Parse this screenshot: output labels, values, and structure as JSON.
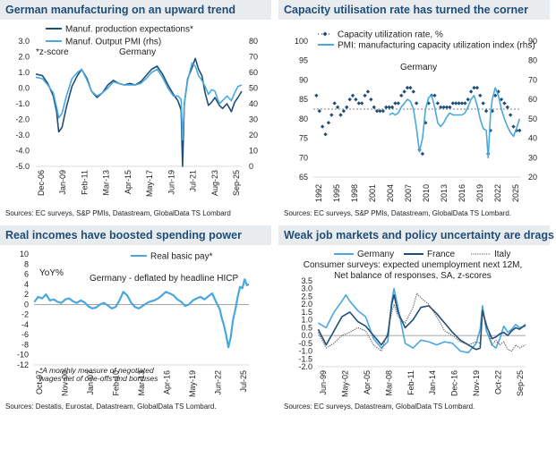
{
  "chart_data": [
    {
      "type": "line",
      "title": "German manufacturing on an upward trend",
      "source": "Sources: EC surveys, S&P PMIs, Datastream, GlobalData TS Lombard",
      "annotations": [
        "*z-score",
        "Germany"
      ],
      "x_tick_labels": [
        "Dec-06",
        "Jan-09",
        "Feb-11",
        "Mar-13",
        "Apr-15",
        "May-17",
        "Jun-19",
        "Jul-21",
        "Aug-23",
        "Sep-25"
      ],
      "y_left_ticks": [
        "3.0",
        "2.0",
        "1.0",
        "0.0",
        "-1.0",
        "-2.0",
        "-3.0",
        "-4.0",
        "-5.0"
      ],
      "y_right_ticks": [
        "80",
        "70",
        "60",
        "50",
        "40",
        "30",
        "20",
        "10",
        "0"
      ],
      "ylim_left": [
        -5,
        3
      ],
      "ylim_right": [
        0,
        80
      ],
      "xlim": [
        2006.9,
        2025.75
      ],
      "grid": false,
      "legend_placement": "top",
      "colors": {
        "s0": "#1f4e79",
        "s1": "#4aa8dc"
      },
      "series": [
        {
          "name": "Manuf. production expectations*",
          "axis": "left",
          "x": [
            2006.9,
            2007.5,
            2008.0,
            2008.5,
            2008.8,
            2009.0,
            2009.3,
            2009.7,
            2010.2,
            2010.7,
            2011.1,
            2011.6,
            2012.0,
            2012.5,
            2013.0,
            2013.5,
            2014.0,
            2014.5,
            2015.0,
            2015.5,
            2016.0,
            2016.5,
            2017.0,
            2017.5,
            2018.0,
            2018.5,
            2019.0,
            2019.5,
            2019.9,
            2020.2,
            2020.33,
            2020.5,
            2020.8,
            2021.2,
            2021.5,
            2021.8,
            2022.1,
            2022.4,
            2022.7,
            2023.0,
            2023.3,
            2023.7,
            2024.0,
            2024.4,
            2024.8,
            2025.1,
            2025.4,
            2025.75
          ],
          "y": [
            0.9,
            0.8,
            0.3,
            -0.5,
            -1.5,
            -2.8,
            -2.5,
            -1.2,
            0.1,
            0.8,
            1.2,
            0.6,
            -0.2,
            -0.6,
            -0.3,
            0.2,
            0.5,
            0.3,
            0.2,
            0.3,
            0.2,
            0.4,
            0.8,
            1.2,
            1.4,
            0.9,
            0.2,
            -0.4,
            -0.8,
            -1.4,
            -5.0,
            -1.0,
            0.6,
            1.3,
            1.9,
            1.2,
            0.8,
            -0.3,
            -1.1,
            -0.9,
            -0.6,
            -1.1,
            -1.3,
            -1.0,
            -1.5,
            -0.9,
            -0.6,
            -0.2
          ]
        },
        {
          "name": "Manuf. Output PMI (rhs)",
          "axis": "right",
          "x": [
            2006.9,
            2007.5,
            2008.0,
            2008.5,
            2008.8,
            2009.0,
            2009.3,
            2009.7,
            2010.2,
            2010.7,
            2011.1,
            2011.6,
            2012.0,
            2012.5,
            2013.0,
            2013.5,
            2014.0,
            2014.5,
            2015.0,
            2015.5,
            2016.0,
            2016.5,
            2017.0,
            2017.5,
            2018.0,
            2018.5,
            2019.0,
            2019.5,
            2019.9,
            2020.2,
            2020.33,
            2020.5,
            2020.8,
            2021.2,
            2021.5,
            2021.8,
            2022.1,
            2022.4,
            2022.7,
            2023.0,
            2023.3,
            2023.7,
            2024.0,
            2024.4,
            2024.8,
            2025.1,
            2025.4,
            2025.75
          ],
          "y": [
            57,
            56,
            52,
            47,
            38,
            31,
            34,
            45,
            56,
            60,
            62,
            55,
            48,
            45,
            47,
            50,
            54,
            53,
            52,
            52,
            52,
            53,
            56,
            60,
            62,
            57,
            50,
            45,
            45,
            43,
            17,
            40,
            55,
            66,
            64,
            58,
            55,
            51,
            46,
            49,
            48,
            40,
            42,
            45,
            42,
            47,
            51,
            52
          ]
        }
      ]
    },
    {
      "type": "line",
      "title": "Capacity utilisation rate has turned the corner",
      "source": "Sources: EC surveys, S&P PMIs, Datastream, GlobalData TS Lombard.",
      "annotations": [
        "Germany"
      ],
      "x_tick_labels": [
        "1992",
        "1995",
        "1998",
        "2001",
        "2004",
        "2007",
        "2010",
        "2013",
        "2016",
        "2019",
        "2022",
        "2025"
      ],
      "y_left_ticks": [
        "100",
        "95",
        "90",
        "85",
        "80",
        "75",
        "70",
        "65"
      ],
      "y_right_ticks": [
        "90",
        "80",
        "70",
        "60",
        "50",
        "40",
        "30",
        "20"
      ],
      "ylim_left": [
        65,
        100
      ],
      "ylim_right": [
        20,
        90
      ],
      "xlim": [
        1991.5,
        2025.75
      ],
      "average_line": 82.5,
      "grid": false,
      "legend_placement": "top",
      "colors": {
        "s0": "#1f4e79",
        "s1": "#4aa8dc"
      },
      "series": [
        {
          "name": "Capacity utilization rate, %",
          "axis": "left",
          "marker": "diamond",
          "x": [
            1992.0,
            1992.5,
            1993.0,
            1993.5,
            1994.0,
            1994.5,
            1995.0,
            1995.5,
            1996.0,
            1996.5,
            1997.0,
            1997.5,
            1998.0,
            1998.5,
            1999.0,
            1999.5,
            2000.0,
            2000.5,
            2001.0,
            2001.5,
            2002.0,
            2002.5,
            2003.0,
            2003.5,
            2004.0,
            2004.5,
            2005.0,
            2005.5,
            2006.0,
            2006.5,
            2007.0,
            2007.5,
            2008.0,
            2008.5,
            2009.0,
            2009.5,
            2010.0,
            2010.5,
            2011.0,
            2011.5,
            2012.0,
            2012.5,
            2013.0,
            2013.5,
            2014.0,
            2014.5,
            2015.0,
            2015.5,
            2016.0,
            2016.5,
            2017.0,
            2017.5,
            2018.0,
            2018.5,
            2019.0,
            2019.5,
            2020.0,
            2020.33,
            2020.7,
            2021.0,
            2021.5,
            2022.0,
            2022.5,
            2023.0,
            2023.5,
            2024.0,
            2024.5,
            2025.0,
            2025.5
          ],
          "y": [
            86,
            82,
            78,
            76,
            79,
            81,
            84,
            83,
            81,
            82,
            83,
            85,
            86,
            85,
            84,
            84,
            86,
            87,
            85,
            83,
            82,
            82,
            82,
            83,
            83,
            83,
            84,
            84,
            86,
            87,
            88,
            88,
            87,
            84,
            72,
            71,
            79,
            84,
            86,
            86,
            84,
            83,
            83,
            83,
            83,
            84,
            84,
            84,
            84,
            84,
            85,
            87,
            88,
            88,
            86,
            84,
            82,
            71,
            77,
            82,
            86,
            87,
            85,
            84,
            83,
            81,
            78,
            77,
            77
          ]
        },
        {
          "name": "PMI: manufacturing capacity utilization index (rhs)",
          "axis": "right",
          "x": [
            2004.0,
            2004.5,
            2005.0,
            2005.5,
            2006.0,
            2006.5,
            2007.0,
            2007.5,
            2008.0,
            2008.5,
            2009.0,
            2009.5,
            2010.0,
            2010.5,
            2011.0,
            2011.5,
            2012.0,
            2012.5,
            2013.0,
            2013.5,
            2014.0,
            2014.5,
            2015.0,
            2015.5,
            2016.0,
            2016.5,
            2017.0,
            2017.5,
            2018.0,
            2018.5,
            2019.0,
            2019.5,
            2020.0,
            2020.33,
            2020.7,
            2021.0,
            2021.5,
            2022.0,
            2022.5,
            2023.0,
            2023.5,
            2024.0,
            2024.5,
            2025.0,
            2025.5
          ],
          "y": [
            52,
            53,
            52,
            53,
            56,
            58,
            60,
            59,
            55,
            45,
            33,
            40,
            55,
            61,
            62,
            56,
            48,
            46,
            48,
            51,
            53,
            52,
            52,
            52,
            52,
            53,
            56,
            60,
            62,
            57,
            50,
            45,
            44,
            30,
            52,
            60,
            66,
            62,
            55,
            50,
            46,
            43,
            41,
            45,
            50
          ]
        }
      ]
    },
    {
      "type": "line",
      "title": "Real incomes have boosted spending power",
      "source": "Sources: Destatis, Eurostat, Datastream, GlobalData TS Lombard.",
      "annotations": [
        "YoY%",
        "Germany - deflated by headline HICP",
        "*A monthly measure of negotiated",
        "wages net of one-offs and bonuses"
      ],
      "x_tick_labels": [
        "Oct-97",
        "Nov-00",
        "Jan-07",
        "Feb-10",
        "Mar-13",
        "Apr-16",
        "May-19",
        "Jun-22",
        "Jul-25"
      ],
      "y_left_ticks": [
        "10",
        "8",
        "6",
        "4",
        "2",
        "0",
        "-2",
        "-4",
        "-6",
        "-8",
        "-10",
        "-12"
      ],
      "ylim_left": [
        -12,
        10
      ],
      "xlim": [
        1997.75,
        2025.55
      ],
      "grid": false,
      "legend_placement": "top",
      "colors": {
        "s0": "#4aa8dc"
      },
      "series": [
        {
          "name": "Real basic pay*",
          "axis": "left",
          "x": [
            1997.8,
            1998.3,
            1998.8,
            1999.3,
            1999.8,
            2000.3,
            2000.8,
            2001.3,
            2001.8,
            2002.3,
            2002.8,
            2003.3,
            2003.8,
            2004.3,
            2004.8,
            2005.3,
            2005.8,
            2006.3,
            2006.8,
            2007.3,
            2007.8,
            2008.3,
            2008.8,
            2009.3,
            2009.8,
            2010.3,
            2010.8,
            2011.3,
            2011.8,
            2012.3,
            2012.8,
            2013.3,
            2013.8,
            2014.3,
            2014.8,
            2015.3,
            2015.8,
            2016.3,
            2016.8,
            2017.3,
            2017.8,
            2018.3,
            2018.8,
            2019.3,
            2019.8,
            2020.3,
            2020.8,
            2021.3,
            2021.8,
            2022.0,
            2022.3,
            2022.6,
            2022.9,
            2023.2,
            2023.5,
            2023.8,
            2024.1,
            2024.4,
            2024.7,
            2025.0,
            2025.3,
            2025.55
          ],
          "y": [
            0.5,
            1.5,
            1.2,
            2.0,
            0.8,
            1.0,
            0.5,
            0.3,
            1.0,
            1.2,
            0.6,
            0.3,
            0.8,
            0.4,
            -0.4,
            -0.8,
            -0.6,
            0.0,
            0.3,
            -0.2,
            -0.8,
            -0.5,
            0.8,
            2.5,
            1.8,
            0.4,
            -0.5,
            -0.8,
            -0.3,
            0.2,
            0.6,
            0.8,
            1.2,
            1.8,
            2.5,
            2.2,
            1.8,
            1.0,
            0.5,
            -0.3,
            0.0,
            0.8,
            1.2,
            1.5,
            1.0,
            1.6,
            2.2,
            0.5,
            -1.0,
            -2.5,
            -4.0,
            -6.0,
            -8.5,
            -6.5,
            -3.0,
            -1.0,
            1.5,
            3.5,
            3.2,
            5.0,
            3.8,
            4.0
          ]
        }
      ]
    },
    {
      "type": "line",
      "title": "Weak job markets and policy uncertainty are drags",
      "subtitle": "Consumer surveys: expected unemployment next 12M, Net balance of responses, SA, z-scores",
      "source": "Sources: EC surveys, Datastream, GlobalData TS Lombard.",
      "x_tick_labels": [
        "Jun-99",
        "May-02",
        "Apr-05",
        "Mar-08",
        "Feb-11",
        "Jan-14",
        "Dec-16",
        "Nov-19",
        "Oct-22",
        "Sep-25"
      ],
      "y_left_ticks": [
        "3.5",
        "3.0",
        "2.5",
        "2.0",
        "1.5",
        "1.0",
        "0.5",
        "0.0",
        "-0.5",
        "-1.0",
        "-1.5",
        "-2.0"
      ],
      "ylim_left": [
        -2,
        3.5
      ],
      "xlim": [
        1999.45,
        2025.75
      ],
      "grid": false,
      "legend_placement": "top",
      "colors": {
        "s0": "#4aa8dc",
        "s1": "#1f4e79",
        "s2": "#555555"
      },
      "series": [
        {
          "name": "Germany",
          "axis": "left",
          "x": [
            1999.5,
            2000.5,
            2001.5,
            2002.5,
            2003.0,
            2003.5,
            2004.5,
            2005.5,
            2006.5,
            2007.5,
            2008.3,
            2008.8,
            2009.1,
            2009.6,
            2010.5,
            2011.5,
            2012.5,
            2013.5,
            2014.5,
            2015.5,
            2016.5,
            2017.5,
            2018.5,
            2019.5,
            2020.0,
            2020.3,
            2020.8,
            2021.5,
            2022.0,
            2022.5,
            2023.0,
            2023.5,
            2024.0,
            2024.5,
            2025.0,
            2025.75
          ],
          "y": [
            0.8,
            0.5,
            1.5,
            2.2,
            2.6,
            2.2,
            1.6,
            1.2,
            -0.2,
            -0.8,
            -0.4,
            2.2,
            3.0,
            1.8,
            -0.5,
            -0.8,
            -0.3,
            -0.4,
            -0.6,
            -0.4,
            -0.5,
            -1.0,
            -1.1,
            -0.5,
            0.4,
            1.9,
            0.3,
            -0.6,
            -0.8,
            -0.2,
            0.6,
            0.2,
            0.4,
            0.7,
            0.5,
            0.6
          ]
        },
        {
          "name": "France",
          "axis": "left",
          "x": [
            1999.5,
            2000.5,
            2001.5,
            2002.5,
            2003.5,
            2004.5,
            2005.5,
            2006.5,
            2007.5,
            2008.3,
            2008.8,
            2009.1,
            2009.6,
            2010.5,
            2011.5,
            2012.5,
            2013.5,
            2014.5,
            2015.5,
            2016.5,
            2017.5,
            2018.5,
            2019.5,
            2020.0,
            2020.3,
            2020.8,
            2021.5,
            2022.0,
            2022.5,
            2023.0,
            2023.5,
            2024.0,
            2024.5,
            2025.0,
            2025.75
          ],
          "y": [
            0.4,
            -0.6,
            0.3,
            1.2,
            1.5,
            0.9,
            0.6,
            0.0,
            -0.6,
            0.0,
            2.0,
            2.6,
            1.5,
            0.5,
            1.0,
            1.8,
            1.9,
            1.4,
            0.8,
            0.2,
            -0.3,
            -0.6,
            -0.9,
            -0.8,
            1.6,
            0.6,
            -0.2,
            -0.1,
            0.1,
            0.2,
            0.0,
            0.3,
            0.5,
            0.4,
            0.7
          ]
        },
        {
          "name": "Italy",
          "axis": "left",
          "dash": "dotted",
          "x": [
            1999.5,
            2000.5,
            2001.5,
            2002.5,
            2003.5,
            2004.5,
            2005.5,
            2006.5,
            2007.5,
            2008.3,
            2008.8,
            2009.1,
            2009.6,
            2010.5,
            2011.5,
            2012.0,
            2012.5,
            2013.5,
            2014.5,
            2015.5,
            2016.5,
            2017.5,
            2018.5,
            2019.5,
            2020.0,
            2020.3,
            2020.8,
            2021.5,
            2022.0,
            2022.5,
            2023.0,
            2023.5,
            2024.0,
            2024.5,
            2025.0,
            2025.75
          ],
          "y": [
            0.2,
            -0.8,
            -0.5,
            0.0,
            0.2,
            0.5,
            0.3,
            -0.6,
            -1.0,
            0.2,
            1.5,
            2.0,
            1.2,
            0.8,
            1.8,
            2.7,
            2.4,
            2.0,
            1.2,
            0.3,
            0.0,
            -0.4,
            -0.6,
            -0.4,
            -0.5,
            1.5,
            0.8,
            -0.6,
            -0.3,
            -0.6,
            -0.4,
            -0.9,
            -1.0,
            -0.6,
            -0.8,
            -0.6
          ]
        }
      ]
    }
  ]
}
